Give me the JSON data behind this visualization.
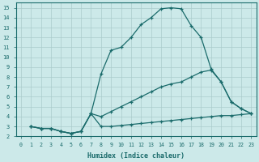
{
  "xlabel": "Humidex (Indice chaleur)",
  "bg_color": "#cce9e9",
  "grid_color": "#aacccc",
  "line_color": "#1a6b6b",
  "xlim": [
    -0.5,
    23.5
  ],
  "ylim": [
    2,
    15.5
  ],
  "xticks": [
    0,
    1,
    2,
    3,
    4,
    5,
    6,
    7,
    8,
    9,
    10,
    11,
    12,
    13,
    14,
    15,
    16,
    17,
    18,
    19,
    20,
    21,
    22,
    23
  ],
  "yticks": [
    2,
    3,
    4,
    5,
    6,
    7,
    8,
    9,
    10,
    11,
    12,
    13,
    14,
    15
  ],
  "curve1_x": [
    1,
    2,
    3,
    4,
    5,
    6,
    7,
    8,
    9,
    10,
    11,
    12,
    13,
    14,
    15,
    16,
    17,
    18,
    19,
    20,
    21,
    22,
    23
  ],
  "curve1_y": [
    3.0,
    2.8,
    2.8,
    2.5,
    2.3,
    2.5,
    4.3,
    8.3,
    10.7,
    11.0,
    12.0,
    13.3,
    14.0,
    14.9,
    15.0,
    14.9,
    13.2,
    12.0,
    8.8,
    7.5,
    5.5,
    4.8,
    4.3
  ],
  "curve2_x": [
    1,
    2,
    3,
    4,
    5,
    6,
    7,
    8,
    9,
    10,
    11,
    12,
    13,
    14,
    15,
    16,
    17,
    18,
    19,
    20,
    21,
    22,
    23
  ],
  "curve2_y": [
    3.0,
    2.8,
    2.8,
    2.5,
    2.3,
    2.5,
    4.3,
    4.0,
    4.5,
    5.0,
    5.5,
    6.0,
    6.5,
    7.0,
    7.3,
    7.5,
    8.0,
    8.5,
    8.7,
    7.5,
    5.5,
    4.8,
    4.3
  ],
  "curve3_x": [
    1,
    2,
    3,
    4,
    5,
    6,
    7,
    8,
    9,
    10,
    11,
    12,
    13,
    14,
    15,
    16,
    17,
    18,
    19,
    20,
    21,
    22,
    23
  ],
  "curve3_y": [
    3.0,
    2.8,
    2.8,
    2.5,
    2.3,
    2.5,
    4.3,
    3.0,
    3.0,
    3.1,
    3.2,
    3.3,
    3.4,
    3.5,
    3.6,
    3.7,
    3.8,
    3.9,
    4.0,
    4.1,
    4.1,
    4.2,
    4.3
  ]
}
